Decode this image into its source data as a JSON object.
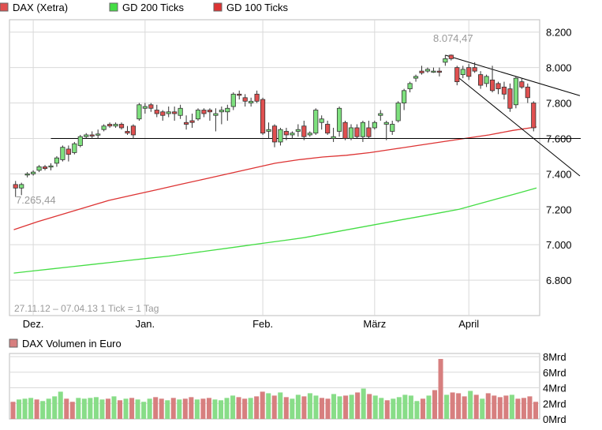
{
  "colors": {
    "background": "#ffffff",
    "grid": "#d9d9d9",
    "frame": "#bdbdbd",
    "candle_up": "#7ee07e",
    "candle_down": "#e05050",
    "candle_outline": "#333333",
    "gd200": "#44dd44",
    "gd100": "#dd3333",
    "volume_up": "#88dd88",
    "volume_down": "#d77f7f",
    "label_gray": "#9a9a9a"
  },
  "legend": {
    "dax": "DAX (Xetra)",
    "gd200": "GD 200 Ticks",
    "gd100": "GD 100 Ticks"
  },
  "volume_legend": "DAX Volumen in Euro",
  "footer_note": "27.11.12 – 07.04.13   1 Tick = 1 Tag",
  "annotations": {
    "high": "8.074,47",
    "low": "7.265,44"
  },
  "chart_data": [
    {
      "type": "candlestick",
      "grid": true,
      "legend_position": "top",
      "x_ticks": [
        "Dez.",
        "Jan.",
        "Feb.",
        "März",
        "April"
      ],
      "x_tick_index": [
        3,
        22,
        42,
        61,
        77
      ],
      "y_ticks": [
        "8.200",
        "8.000",
        "7.800",
        "7.600",
        "7.400",
        "7.200",
        "7.000",
        "6.800"
      ],
      "y_tick_values": [
        8200,
        8000,
        7800,
        7600,
        7400,
        7200,
        7000,
        6800
      ],
      "ylim": [
        6600,
        8270
      ],
      "ohlc": [
        [
          7340,
          7360,
          7270,
          7320
        ],
        [
          7320,
          7350,
          7280,
          7340
        ],
        [
          7395,
          7410,
          7380,
          7400
        ],
        [
          7400,
          7420,
          7390,
          7410
        ],
        [
          7420,
          7450,
          7410,
          7440
        ],
        [
          7440,
          7450,
          7420,
          7430
        ],
        [
          7440,
          7460,
          7420,
          7445
        ],
        [
          7460,
          7500,
          7440,
          7490
        ],
        [
          7480,
          7560,
          7470,
          7550
        ],
        [
          7540,
          7560,
          7470,
          7510
        ],
        [
          7520,
          7580,
          7510,
          7570
        ],
        [
          7560,
          7620,
          7550,
          7610
        ],
        [
          7610,
          7630,
          7600,
          7620
        ],
        [
          7620,
          7640,
          7600,
          7615
        ],
        [
          7620,
          7650,
          7600,
          7625
        ],
        [
          7650,
          7680,
          7640,
          7670
        ],
        [
          7680,
          7690,
          7660,
          7670
        ],
        [
          7670,
          7690,
          7660,
          7680
        ],
        [
          7680,
          7690,
          7650,
          7660
        ],
        [
          7640,
          7670,
          7620,
          7630
        ],
        [
          7670,
          7680,
          7600,
          7620
        ],
        [
          7710,
          7800,
          7700,
          7790
        ],
        [
          7770,
          7800,
          7740,
          7780
        ],
        [
          7790,
          7800,
          7750,
          7770
        ],
        [
          7760,
          7790,
          7720,
          7740
        ],
        [
          7750,
          7760,
          7700,
          7730
        ],
        [
          7740,
          7780,
          7720,
          7750
        ],
        [
          7750,
          7780,
          7700,
          7740
        ],
        [
          7730,
          7790,
          7710,
          7770
        ],
        [
          7690,
          7730,
          7650,
          7680
        ],
        [
          7700,
          7740,
          7660,
          7690
        ],
        [
          7710,
          7770,
          7700,
          7760
        ],
        [
          7760,
          7770,
          7720,
          7740
        ],
        [
          7760,
          7770,
          7700,
          7750
        ],
        [
          7730,
          7770,
          7640,
          7740
        ],
        [
          7750,
          7780,
          7680,
          7760
        ],
        [
          7750,
          7790,
          7700,
          7770
        ],
        [
          7780,
          7860,
          7760,
          7850
        ],
        [
          7850,
          7870,
          7820,
          7845
        ],
        [
          7830,
          7850,
          7780,
          7810
        ],
        [
          7800,
          7830,
          7780,
          7810
        ],
        [
          7850,
          7870,
          7800,
          7810
        ],
        [
          7820,
          7830,
          7620,
          7630
        ],
        [
          7640,
          7690,
          7600,
          7650
        ],
        [
          7670,
          7680,
          7550,
          7580
        ],
        [
          7580,
          7660,
          7560,
          7650
        ],
        [
          7640,
          7660,
          7590,
          7620
        ],
        [
          7620,
          7640,
          7600,
          7630
        ],
        [
          7640,
          7680,
          7610,
          7650
        ],
        [
          7670,
          7700,
          7590,
          7610
        ],
        [
          7620,
          7640,
          7610,
          7630
        ],
        [
          7630,
          7770,
          7620,
          7760
        ],
        [
          7690,
          7730,
          7650,
          7710
        ],
        [
          7680,
          7700,
          7620,
          7630
        ],
        [
          7600,
          7660,
          7580,
          7610
        ],
        [
          7640,
          7780,
          7610,
          7770
        ],
        [
          7690,
          7700,
          7590,
          7600
        ],
        [
          7600,
          7680,
          7590,
          7660
        ],
        [
          7660,
          7680,
          7600,
          7610
        ],
        [
          7610,
          7700,
          7580,
          7690
        ],
        [
          7660,
          7700,
          7600,
          7610
        ],
        [
          7660,
          7700,
          7650,
          7690
        ],
        [
          7730,
          7760,
          7700,
          7740
        ],
        [
          7680,
          7700,
          7590,
          7690
        ],
        [
          7640,
          7700,
          7620,
          7680
        ],
        [
          7700,
          7810,
          7690,
          7800
        ],
        [
          7800,
          7880,
          7760,
          7870
        ],
        [
          7880,
          7920,
          7860,
          7910
        ],
        [
          7940,
          7960,
          7920,
          7950
        ],
        [
          7980,
          8010,
          7960,
          7970
        ],
        [
          7980,
          8000,
          7970,
          7990
        ],
        [
          7980,
          8000,
          7970,
          7980
        ],
        [
          7980,
          8000,
          7950,
          7975
        ],
        [
          8030,
          8070,
          8010,
          8050
        ],
        [
          8070,
          8074,
          8040,
          8050
        ],
        [
          8000,
          8010,
          7900,
          7920
        ],
        [
          7960,
          8010,
          7940,
          7990
        ],
        [
          8000,
          8020,
          7930,
          7950
        ],
        [
          8000,
          8030,
          7970,
          7980
        ],
        [
          7960,
          7980,
          7880,
          7900
        ],
        [
          7910,
          7960,
          7890,
          7950
        ],
        [
          7930,
          8010,
          7860,
          7870
        ],
        [
          7910,
          7920,
          7850,
          7880
        ],
        [
          7890,
          7920,
          7820,
          7850
        ],
        [
          7880,
          7910,
          7750,
          7770
        ],
        [
          7790,
          7950,
          7770,
          7940
        ],
        [
          7920,
          7940,
          7880,
          7890
        ],
        [
          7890,
          7910,
          7800,
          7830
        ],
        [
          7800,
          7810,
          7640,
          7660
        ]
      ],
      "gd200": [
        6840,
        6852,
        6864,
        6876,
        6888,
        6900,
        6912,
        6924,
        6936,
        6950,
        6965,
        6980,
        6995,
        7010,
        7025,
        7040,
        7060,
        7080,
        7100,
        7120,
        7140,
        7160,
        7180,
        7200,
        7230,
        7260,
        7290,
        7320
      ],
      "gd100": [
        7085,
        7130,
        7170,
        7210,
        7250,
        7280,
        7310,
        7340,
        7370,
        7400,
        7430,
        7460,
        7480,
        7495,
        7505,
        7520,
        7540,
        7560,
        7580,
        7600,
        7620,
        7645,
        7665
      ],
      "levels": {
        "support": 7600,
        "upper_trendline": [
          [
            73,
            8070
          ],
          [
            88,
            7920
          ]
        ],
        "lower_trendline": [
          [
            75,
            7950
          ],
          [
            88,
            7600
          ]
        ]
      }
    },
    {
      "type": "bar",
      "ylabel": "DAX Volumen in Euro",
      "y_ticks": [
        "8Mrd",
        "6Mrd",
        "4Mrd",
        "2Mrd",
        "0Mrd"
      ],
      "y_tick_values": [
        8,
        6,
        4,
        2,
        0
      ],
      "ylim": [
        0,
        8
      ],
      "values_mrd": [
        2.2,
        2.5,
        2.6,
        2.7,
        2.5,
        2.3,
        2.6,
        2.9,
        3.5,
        2.6,
        2.2,
        2.7,
        2.6,
        2.7,
        2.8,
        2.5,
        2.6,
        2.9,
        2.4,
        2.6,
        2.7,
        2.5,
        2.2,
        2.6,
        2.8,
        2.6,
        2.4,
        2.7,
        2.5,
        2.6,
        2.8,
        2.5,
        2.6,
        2.7,
        2.5,
        2.4,
        2.7,
        3.0,
        2.8,
        2.6,
        2.7,
        2.9,
        3.5,
        3.3,
        3.0,
        3.4,
        2.8,
        2.6,
        3.1,
        2.9,
        3.3,
        3.0,
        2.7,
        2.6,
        3.2,
        2.9,
        3.0,
        3.1,
        3.4,
        3.9,
        3.2,
        3.0,
        2.7,
        2.4,
        2.6,
        2.8,
        3.1,
        3.0,
        2.3,
        2.6,
        3.0,
        3.7,
        7.7,
        3.1,
        3.4,
        3.3,
        2.9,
        3.6,
        3.1,
        2.6,
        3.3,
        3.0,
        2.8,
        3.0,
        3.1,
        2.6,
        2.7,
        2.9,
        2.2
      ],
      "up": [
        0,
        1,
        1,
        1,
        0,
        1,
        1,
        1,
        1,
        0,
        0,
        1,
        1,
        1,
        1,
        1,
        0,
        1,
        0,
        1,
        0,
        1,
        1,
        1,
        0,
        0,
        1,
        0,
        1,
        0,
        0,
        1,
        0,
        0,
        1,
        1,
        1,
        1,
        0,
        0,
        1,
        0,
        0,
        1,
        0,
        1,
        0,
        1,
        1,
        0,
        1,
        1,
        0,
        0,
        1,
        1,
        0,
        1,
        0,
        1,
        0,
        1,
        1,
        0,
        1,
        1,
        1,
        1,
        1,
        0,
        1,
        0,
        0,
        1,
        0,
        0,
        0,
        1,
        0,
        1,
        0,
        0,
        0,
        0,
        1,
        0,
        0,
        0,
        0
      ]
    }
  ]
}
